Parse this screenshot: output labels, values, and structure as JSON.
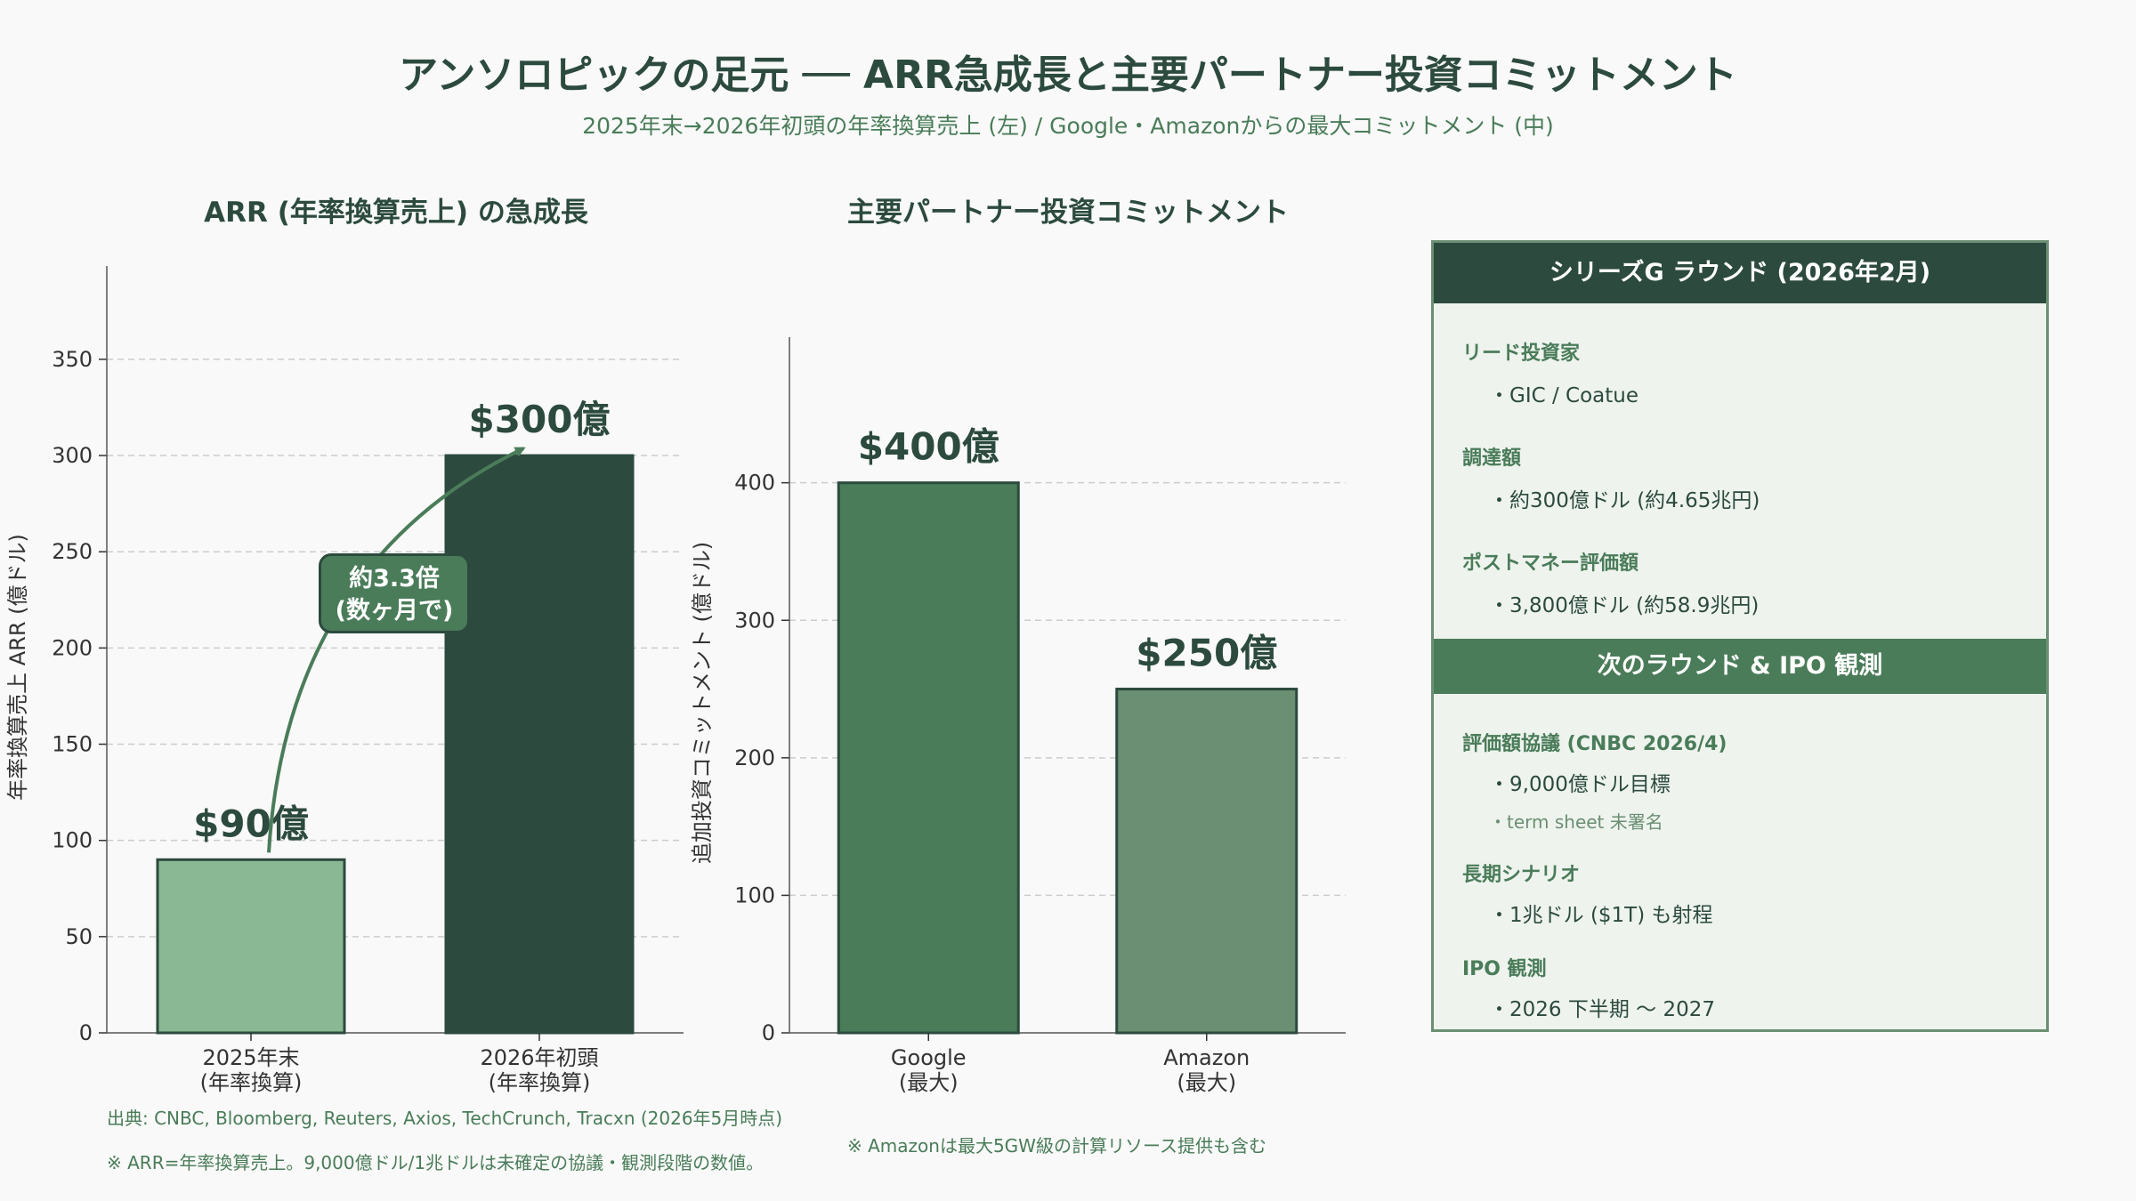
{
  "header": {
    "title": "アンソロピックの足元 ── ARR急成長と主要パートナー投資コミットメント",
    "subtitle": "2025年末→2026年初頭の年率換算売上 (左) / Google・Amazonからの最大コミットメント (中)"
  },
  "chart_data": [
    {
      "type": "bar",
      "title": "ARR (年率換算売上) の急成長",
      "categories": [
        "2025年末\n(年率換算)",
        "2026年初頭\n(年率換算)"
      ],
      "values": [
        90,
        300
      ],
      "data_labels": [
        "$90億",
        "$300億"
      ],
      "ylabel": "年率換算売上 ARR (億ドル)",
      "ylim": [
        0,
        380
      ],
      "yticks": [
        0,
        50,
        100,
        150,
        200,
        250,
        300,
        350
      ],
      "grid": true,
      "colors": [
        "#8ab894",
        "#2c4a3e"
      ],
      "annotation": "約3.3倍\n(数ヶ月で)"
    },
    {
      "type": "bar",
      "title": "主要パートナー投資コミットメント",
      "categories": [
        "Google\n(最大)",
        "Amazon\n(最大)"
      ],
      "values": [
        400,
        250
      ],
      "data_labels": [
        "$400億",
        "$250億"
      ],
      "ylabel": "追加投資コミットメント (億ドル)",
      "ylim": [
        0,
        480
      ],
      "yticks": [
        0,
        100,
        200,
        300,
        400
      ],
      "grid": true,
      "colors": [
        "#4a7c59",
        "#6b8f72"
      ]
    }
  ],
  "side_panel": {
    "series_g": {
      "header": "シリーズG ラウンド (2026年2月)",
      "lead_label": "リード投資家",
      "lead_value": "・GIC / Coatue",
      "raise_label": "調達額",
      "raise_value": "・約300億ドル (約4.65兆円)",
      "post_label": "ポストマネー評価額",
      "post_value": "・3,800億ドル (約58.9兆円)"
    },
    "next_round": {
      "header": "次のラウンド & IPO 観測",
      "valuation_label": "評価額協議 (CNBC 2026/4)",
      "valuation_value": "・9,000億ドル目標",
      "valuation_note": "・term sheet 未署名",
      "long_label": "長期シナリオ",
      "long_value": "・1兆ドル ($1T) も射程",
      "ipo_label": "IPO 観測",
      "ipo_value": "・2026 下半期 〜 2027"
    }
  },
  "footnotes": {
    "source": "出典: CNBC, Bloomberg, Reuters, Axios, TechCrunch, Tracxn (2026年5月時点)",
    "note_arr": "※ ARR=年率換算売上。9,000億ドル/1兆ドルは未確定の協議・観測段階の数値。",
    "note_amazon": "※ Amazonは最大5GW級の計算リソース提供も含む"
  },
  "colors": {
    "dark": "#2c4a3e",
    "mid": "#4a7c59",
    "light": "#8ab894",
    "muted": "#6b8f72",
    "grid": "#cccccc"
  }
}
